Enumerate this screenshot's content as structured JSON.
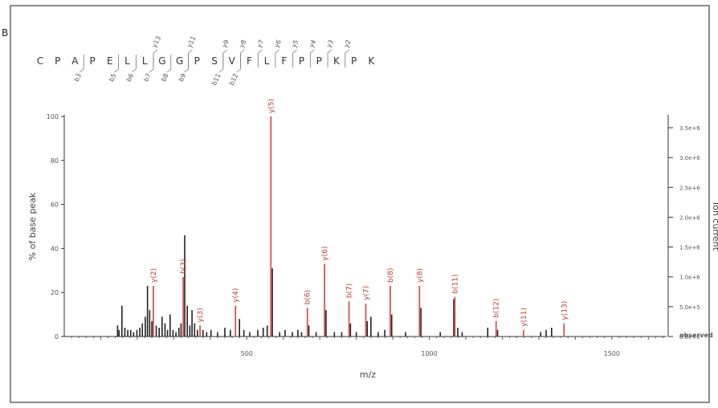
{
  "panel_label": "B",
  "chart_data": {
    "type": "bar",
    "title": "",
    "xlabel": "m/z",
    "ylabel": "% of base peak",
    "right_label": "ion current",
    "xlim": [
      0,
      1650
    ],
    "ylim": [
      0,
      100
    ],
    "x_ticks": [
      "500",
      "1000",
      "1500"
    ],
    "y_ticks": [
      "0",
      "20",
      "40",
      "60",
      "80",
      "100"
    ],
    "right_ticks": [
      "0.0e+0",
      "5.0e+5",
      "1.0e+6",
      "1.5e+6",
      "2.0e+6",
      "2.5e+6",
      "3.0e+6",
      "3.5e+6"
    ],
    "right_legend": "observed",
    "grid": false,
    "sequence": [
      "C",
      "P",
      "A",
      "P",
      "E",
      "L",
      "L",
      "G",
      "G",
      "P",
      "S",
      "V",
      "F",
      "L",
      "F",
      "P",
      "P",
      "K",
      "P",
      "K"
    ],
    "sequence_fragments": [
      {
        "label": "y13",
        "after": 7,
        "side": "top"
      },
      {
        "label": "y11",
        "after": 9,
        "side": "top"
      },
      {
        "label": "y9",
        "after": 11,
        "side": "top"
      },
      {
        "label": "y8",
        "after": 12,
        "side": "top"
      },
      {
        "label": "y7",
        "after": 13,
        "side": "top"
      },
      {
        "label": "y6",
        "after": 14,
        "side": "top"
      },
      {
        "label": "y5",
        "after": 15,
        "side": "top"
      },
      {
        "label": "y4",
        "after": 16,
        "side": "top"
      },
      {
        "label": "y3",
        "after": 17,
        "side": "top"
      },
      {
        "label": "y2",
        "after": 18,
        "side": "top"
      },
      {
        "label": "b3",
        "after": 3,
        "side": "bottom"
      },
      {
        "label": "b5",
        "after": 5,
        "side": "bottom"
      },
      {
        "label": "b6",
        "after": 6,
        "side": "bottom"
      },
      {
        "label": "b7",
        "after": 7,
        "side": "bottom"
      },
      {
        "label": "b8",
        "after": 8,
        "side": "bottom"
      },
      {
        "label": "b9",
        "after": 9,
        "side": "bottom"
      },
      {
        "label": "b11",
        "after": 11,
        "side": "bottom"
      },
      {
        "label": "b12",
        "after": 12,
        "side": "bottom"
      }
    ],
    "labeled_peaks": [
      {
        "label": "y(2)",
        "x": 244,
        "y": 23
      },
      {
        "label": "b(3)",
        "x": 326,
        "y": 27
      },
      {
        "label": "y(3)",
        "x": 372,
        "y": 5
      },
      {
        "label": "y(4)",
        "x": 469,
        "y": 14
      },
      {
        "label": "y(5)",
        "x": 566,
        "y": 100
      },
      {
        "label": "b(6)",
        "x": 666,
        "y": 13
      },
      {
        "label": "y(6)",
        "x": 713,
        "y": 33
      },
      {
        "label": "b(7)",
        "x": 780,
        "y": 16
      },
      {
        "label": "y(7)",
        "x": 826,
        "y": 15
      },
      {
        "label": "b(8)",
        "x": 893,
        "y": 23
      },
      {
        "label": "y(8)",
        "x": 973,
        "y": 23
      },
      {
        "label": "b(11)",
        "x": 1070,
        "y": 18
      },
      {
        "label": "b(12)",
        "x": 1183,
        "y": 7
      },
      {
        "label": "y(11)",
        "x": 1258,
        "y": 3
      },
      {
        "label": "y(13)",
        "x": 1369,
        "y": 6
      }
    ],
    "other_peaks": [
      {
        "x": 146,
        "y": 5
      },
      {
        "x": 150,
        "y": 3
      },
      {
        "x": 158,
        "y": 14
      },
      {
        "x": 166,
        "y": 4
      },
      {
        "x": 174,
        "y": 3
      },
      {
        "x": 182,
        "y": 3
      },
      {
        "x": 190,
        "y": 2
      },
      {
        "x": 199,
        "y": 3
      },
      {
        "x": 207,
        "y": 4
      },
      {
        "x": 214,
        "y": 6
      },
      {
        "x": 222,
        "y": 9
      },
      {
        "x": 228,
        "y": 23
      },
      {
        "x": 234,
        "y": 12
      },
      {
        "x": 240,
        "y": 7
      },
      {
        "x": 252,
        "y": 5
      },
      {
        "x": 260,
        "y": 4
      },
      {
        "x": 268,
        "y": 9
      },
      {
        "x": 276,
        "y": 6
      },
      {
        "x": 283,
        "y": 3
      },
      {
        "x": 290,
        "y": 10
      },
      {
        "x": 298,
        "y": 3
      },
      {
        "x": 306,
        "y": 2
      },
      {
        "x": 314,
        "y": 4
      },
      {
        "x": 320,
        "y": 6
      },
      {
        "x": 330,
        "y": 46
      },
      {
        "x": 337,
        "y": 14
      },
      {
        "x": 344,
        "y": 5
      },
      {
        "x": 350,
        "y": 12
      },
      {
        "x": 357,
        "y": 6
      },
      {
        "x": 365,
        "y": 3
      },
      {
        "x": 380,
        "y": 3
      },
      {
        "x": 390,
        "y": 2
      },
      {
        "x": 402,
        "y": 3
      },
      {
        "x": 420,
        "y": 2
      },
      {
        "x": 440,
        "y": 4
      },
      {
        "x": 455,
        "y": 3
      },
      {
        "x": 480,
        "y": 8
      },
      {
        "x": 492,
        "y": 3
      },
      {
        "x": 508,
        "y": 2
      },
      {
        "x": 530,
        "y": 3
      },
      {
        "x": 545,
        "y": 4
      },
      {
        "x": 556,
        "y": 5
      },
      {
        "x": 570,
        "y": 31
      },
      {
        "x": 590,
        "y": 2
      },
      {
        "x": 605,
        "y": 3
      },
      {
        "x": 625,
        "y": 2
      },
      {
        "x": 640,
        "y": 3
      },
      {
        "x": 650,
        "y": 2
      },
      {
        "x": 670,
        "y": 5
      },
      {
        "x": 690,
        "y": 2
      },
      {
        "x": 717,
        "y": 12
      },
      {
        "x": 740,
        "y": 2
      },
      {
        "x": 760,
        "y": 2
      },
      {
        "x": 784,
        "y": 6
      },
      {
        "x": 800,
        "y": 2
      },
      {
        "x": 830,
        "y": 7
      },
      {
        "x": 840,
        "y": 9
      },
      {
        "x": 860,
        "y": 2
      },
      {
        "x": 878,
        "y": 3
      },
      {
        "x": 897,
        "y": 10
      },
      {
        "x": 935,
        "y": 2
      },
      {
        "x": 977,
        "y": 13
      },
      {
        "x": 1030,
        "y": 2
      },
      {
        "x": 1067,
        "y": 17
      },
      {
        "x": 1078,
        "y": 4
      },
      {
        "x": 1090,
        "y": 2
      },
      {
        "x": 1160,
        "y": 4
      },
      {
        "x": 1187,
        "y": 3
      },
      {
        "x": 1305,
        "y": 2
      },
      {
        "x": 1320,
        "y": 3
      },
      {
        "x": 1335,
        "y": 4
      }
    ]
  }
}
